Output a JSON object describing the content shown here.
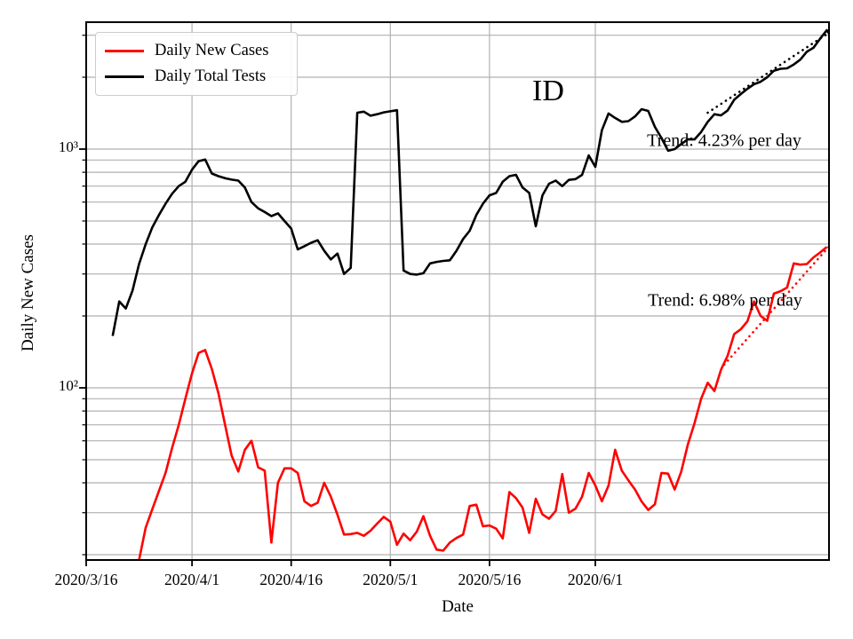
{
  "figure": {
    "background": "#ffffff",
    "grid_color": "#b0b0b0",
    "spine_color": "#000000"
  },
  "chart_data": {
    "type": "line",
    "title": "ID",
    "xlabel": "Date",
    "ylabel": "Daily New Cases",
    "yscale": "log",
    "ylim": [
      19,
      3400
    ],
    "xlim_days": [
      0,
      112.4
    ],
    "grid": true,
    "legend_position": "upper left",
    "x_ticks": [
      {
        "day": 0,
        "label": "2020/3/16"
      },
      {
        "day": 16,
        "label": "2020/4/1"
      },
      {
        "day": 31,
        "label": "2020/4/16"
      },
      {
        "day": 46,
        "label": "2020/5/1"
      },
      {
        "day": 61,
        "label": "2020/5/16"
      },
      {
        "day": 77,
        "label": "2020/6/1"
      }
    ],
    "y_ticks": [
      {
        "value": 1000,
        "label": "10³"
      },
      {
        "value": 100,
        "label": "10²"
      }
    ],
    "y_minor_ticks": [
      20,
      30,
      40,
      50,
      60,
      70,
      80,
      90,
      200,
      300,
      400,
      500,
      600,
      700,
      800,
      900,
      2000,
      3000
    ],
    "series": [
      {
        "name": "Daily New Cases",
        "color": "#ff0000",
        "start_day": 7,
        "values": [
          10,
          19,
          26,
          31,
          37,
          44,
          56,
          70,
          90,
          115,
          140,
          144,
          120,
          95,
          70,
          52,
          44.6,
          55,
          60,
          46.5,
          45,
          22.5,
          40,
          46,
          46,
          44,
          33.5,
          32,
          33,
          40,
          35,
          29.4,
          24.3,
          24.4,
          24.7,
          24,
          25.2,
          27,
          28.8,
          27.5,
          22,
          24.5,
          23,
          25,
          29,
          24,
          21,
          20.8,
          22.5,
          23.5,
          24.3,
          32,
          32.4,
          26.3,
          26.5,
          25.7,
          23.4,
          36.6,
          34.5,
          31.5,
          24.7,
          34.3,
          29.5,
          28.3,
          30.5,
          43.5,
          30,
          31.2,
          35,
          44,
          39,
          33.5,
          39,
          55,
          45,
          41,
          37.5,
          33.4,
          30.8,
          32.5,
          44,
          43.7,
          37.5,
          44.6,
          58,
          71,
          90,
          105,
          97,
          119,
          136,
          168,
          176,
          190,
          230,
          200,
          191,
          248,
          254,
          263,
          332,
          328,
          330,
          352,
          369,
          389
        ]
      },
      {
        "name": "Daily Total Tests",
        "color": "#000000",
        "start_day": 4,
        "values": [
          165,
          230,
          215,
          255,
          330,
          400,
          470,
          530,
          590,
          650,
          700,
          730,
          820,
          890,
          905,
          790,
          770,
          755,
          745,
          738,
          690,
          600,
          565,
          545,
          524,
          538,
          500,
          465,
          380,
          392,
          405,
          415,
          375,
          345,
          365,
          300,
          318,
          1420,
          1435,
          1380,
          1400,
          1425,
          1440,
          1455,
          310,
          300,
          298,
          302,
          332,
          337,
          340,
          342,
          375,
          420,
          455,
          530,
          590,
          640,
          655,
          730,
          770,
          780,
          690,
          655,
          475,
          640,
          716,
          738,
          700,
          743,
          749,
          780,
          941,
          843,
          1200,
          1410,
          1350,
          1300,
          1310,
          1370,
          1470,
          1445,
          1240,
          1113,
          985,
          1000,
          1050,
          1100,
          1098,
          1180,
          1300,
          1400,
          1385,
          1450,
          1610,
          1700,
          1790,
          1870,
          1915,
          2000,
          2130,
          2170,
          2180,
          2260,
          2370,
          2560,
          2660,
          2900,
          3150,
          2870
        ]
      }
    ],
    "trends": [
      {
        "label": "Trend: 4.23% per day",
        "color": "#000000",
        "start_day": 94,
        "end_day": 112.4,
        "start_value": 1420,
        "end_value": 3080
      },
      {
        "label": "Trend: 6.98% per day",
        "color": "#ff0000",
        "start_day": 96.5,
        "end_day": 112.4,
        "start_value": 125,
        "end_value": 392
      }
    ]
  }
}
